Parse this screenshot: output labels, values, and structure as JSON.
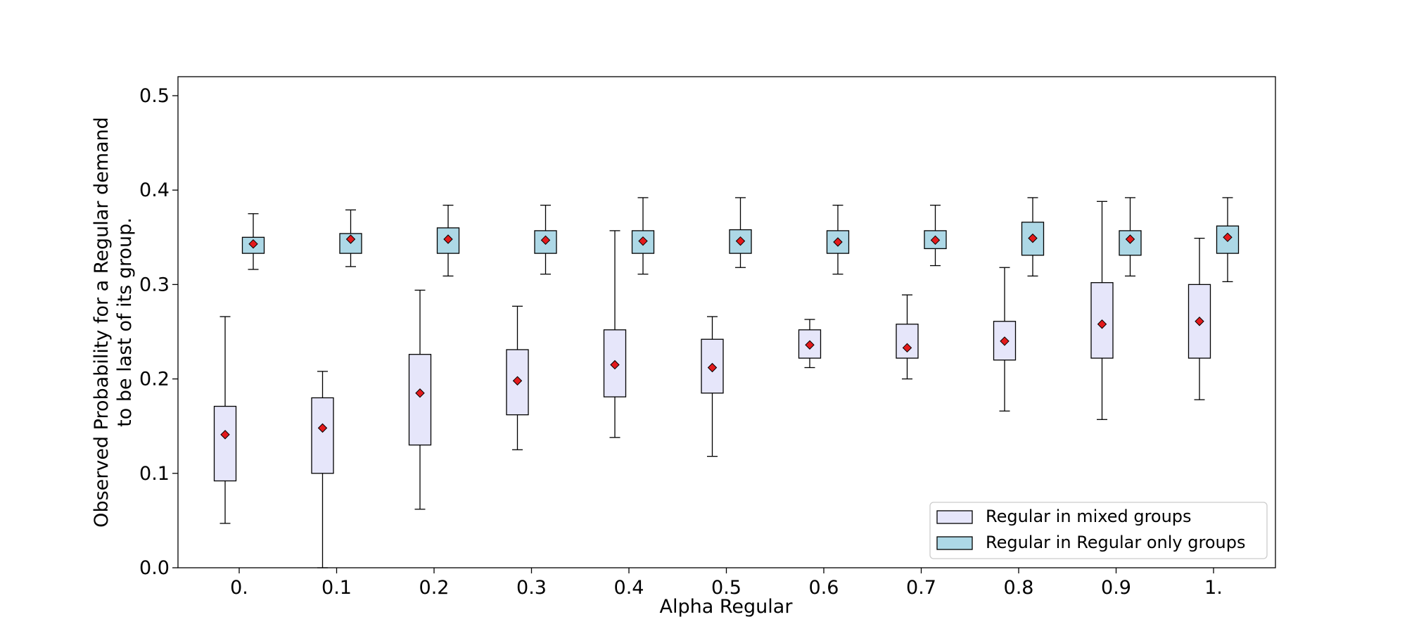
{
  "chart_data": {
    "type": "box",
    "title": "",
    "xlabel": "Alpha Regular",
    "ylabel_line1": "Observed Probability for a Regular demand",
    "ylabel_line2": "to be last of its group.",
    "categories": [
      "0.",
      "0.1",
      "0.2",
      "0.3",
      "0.4",
      "0.5",
      "0.6",
      "0.7",
      "0.8",
      "0.9",
      "1."
    ],
    "ylim": [
      0.0,
      0.52
    ],
    "yticks": [
      0.0,
      0.1,
      0.2,
      0.3,
      0.4,
      0.5
    ],
    "ytick_labels": [
      "0.0",
      "0.1",
      "0.2",
      "0.3",
      "0.4",
      "0.5"
    ],
    "legend_position": "bottom-right",
    "series": [
      {
        "name": "Regular in mixed groups",
        "color": "#e6e6fa",
        "boxes": [
          {
            "whislo": 0.047,
            "q1": 0.092,
            "q3": 0.171,
            "whishi": 0.266,
            "mean": 0.141
          },
          {
            "whislo": 0.0,
            "q1": 0.1,
            "q3": 0.18,
            "whishi": 0.208,
            "mean": 0.148
          },
          {
            "whislo": 0.062,
            "q1": 0.13,
            "q3": 0.226,
            "whishi": 0.294,
            "mean": 0.185
          },
          {
            "whislo": 0.125,
            "q1": 0.162,
            "q3": 0.231,
            "whishi": 0.277,
            "mean": 0.198
          },
          {
            "whislo": 0.138,
            "q1": 0.181,
            "q3": 0.252,
            "whishi": 0.357,
            "mean": 0.215
          },
          {
            "whislo": 0.118,
            "q1": 0.185,
            "q3": 0.242,
            "whishi": 0.266,
            "mean": 0.212
          },
          {
            "whislo": 0.212,
            "q1": 0.222,
            "q3": 0.252,
            "whishi": 0.263,
            "mean": 0.236
          },
          {
            "whislo": 0.2,
            "q1": 0.222,
            "q3": 0.258,
            "whishi": 0.289,
            "mean": 0.233
          },
          {
            "whislo": 0.166,
            "q1": 0.22,
            "q3": 0.261,
            "whishi": 0.318,
            "mean": 0.24
          },
          {
            "whislo": 0.157,
            "q1": 0.222,
            "q3": 0.302,
            "whishi": 0.388,
            "mean": 0.258
          },
          {
            "whislo": 0.178,
            "q1": 0.222,
            "q3": 0.3,
            "whishi": 0.349,
            "mean": 0.261
          }
        ]
      },
      {
        "name": "Regular in Regular only groups",
        "color": "#add8e6",
        "boxes": [
          {
            "whislo": 0.316,
            "q1": 0.333,
            "q3": 0.35,
            "whishi": 0.375,
            "mean": 0.343
          },
          {
            "whislo": 0.319,
            "q1": 0.333,
            "q3": 0.354,
            "whishi": 0.379,
            "mean": 0.348
          },
          {
            "whislo": 0.309,
            "q1": 0.333,
            "q3": 0.36,
            "whishi": 0.384,
            "mean": 0.348
          },
          {
            "whislo": 0.311,
            "q1": 0.333,
            "q3": 0.357,
            "whishi": 0.384,
            "mean": 0.347
          },
          {
            "whislo": 0.311,
            "q1": 0.333,
            "q3": 0.357,
            "whishi": 0.392,
            "mean": 0.346
          },
          {
            "whislo": 0.318,
            "q1": 0.333,
            "q3": 0.358,
            "whishi": 0.392,
            "mean": 0.346
          },
          {
            "whislo": 0.311,
            "q1": 0.333,
            "q3": 0.357,
            "whishi": 0.384,
            "mean": 0.345
          },
          {
            "whislo": 0.32,
            "q1": 0.338,
            "q3": 0.357,
            "whishi": 0.384,
            "mean": 0.347
          },
          {
            "whislo": 0.309,
            "q1": 0.331,
            "q3": 0.366,
            "whishi": 0.392,
            "mean": 0.349
          },
          {
            "whislo": 0.309,
            "q1": 0.331,
            "q3": 0.357,
            "whishi": 0.392,
            "mean": 0.348
          },
          {
            "whislo": 0.303,
            "q1": 0.333,
            "q3": 0.362,
            "whishi": 0.392,
            "mean": 0.35
          }
        ]
      }
    ],
    "mean_marker_color": "#e31a1c"
  }
}
